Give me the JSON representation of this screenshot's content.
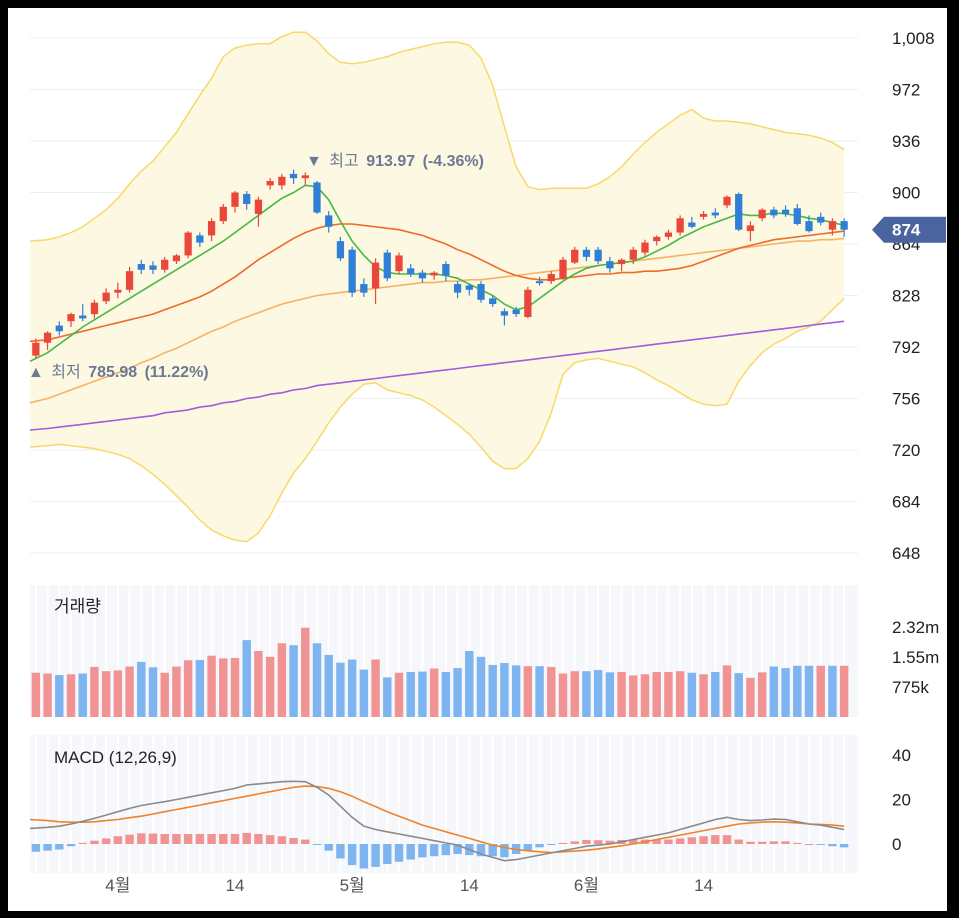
{
  "chart_data": {
    "type": "candlestick",
    "price_axis": {
      "ticks": [
        "1,008",
        "972",
        "936",
        "900",
        "864",
        "828",
        "792",
        "756",
        "720",
        "684",
        "648"
      ],
      "tick_values": [
        1008,
        972,
        936,
        900,
        864,
        828,
        792,
        756,
        720,
        684,
        648
      ],
      "range": [
        648,
        1020
      ]
    },
    "current_price": {
      "label": "874",
      "value": 874
    },
    "high_annotation": {
      "arrow": "▼",
      "prefix": "최고",
      "value": "913.97",
      "change": "(-4.36%)"
    },
    "low_annotation": {
      "arrow": "▲",
      "prefix": "최저",
      "value": "785.98",
      "change": "(11.22%)"
    },
    "candles": [
      {
        "o": 786,
        "h": 798,
        "l": 784,
        "c": 795,
        "d": "up"
      },
      {
        "o": 795,
        "h": 803,
        "l": 790,
        "c": 802,
        "d": "up"
      },
      {
        "o": 807,
        "h": 810,
        "l": 800,
        "c": 803,
        "d": "down"
      },
      {
        "o": 810,
        "h": 816,
        "l": 806,
        "c": 815,
        "d": "up"
      },
      {
        "o": 814,
        "h": 822,
        "l": 810,
        "c": 812,
        "d": "down"
      },
      {
        "o": 815,
        "h": 825,
        "l": 812,
        "c": 823,
        "d": "up"
      },
      {
        "o": 824,
        "h": 833,
        "l": 822,
        "c": 830,
        "d": "up"
      },
      {
        "o": 830,
        "h": 837,
        "l": 826,
        "c": 832,
        "d": "up"
      },
      {
        "o": 832,
        "h": 848,
        "l": 830,
        "c": 845,
        "d": "up"
      },
      {
        "o": 850,
        "h": 853,
        "l": 843,
        "c": 846,
        "d": "down"
      },
      {
        "o": 849,
        "h": 852,
        "l": 843,
        "c": 846,
        "d": "down"
      },
      {
        "o": 846,
        "h": 855,
        "l": 844,
        "c": 853,
        "d": "up"
      },
      {
        "o": 852,
        "h": 857,
        "l": 850,
        "c": 856,
        "d": "up"
      },
      {
        "o": 856,
        "h": 873,
        "l": 854,
        "c": 872,
        "d": "up"
      },
      {
        "o": 870,
        "h": 872,
        "l": 862,
        "c": 865,
        "d": "down"
      },
      {
        "o": 870,
        "h": 882,
        "l": 866,
        "c": 880,
        "d": "up"
      },
      {
        "o": 880,
        "h": 892,
        "l": 878,
        "c": 890,
        "d": "up"
      },
      {
        "o": 890,
        "h": 901,
        "l": 886,
        "c": 900,
        "d": "up"
      },
      {
        "o": 899,
        "h": 901,
        "l": 888,
        "c": 892,
        "d": "down"
      },
      {
        "o": 885,
        "h": 897,
        "l": 876,
        "c": 895,
        "d": "up"
      },
      {
        "o": 905,
        "h": 910,
        "l": 902,
        "c": 908,
        "d": "up"
      },
      {
        "o": 905,
        "h": 913,
        "l": 902,
        "c": 911,
        "d": "up"
      },
      {
        "o": 913,
        "h": 916,
        "l": 906,
        "c": 910,
        "d": "down"
      },
      {
        "o": 910,
        "h": 914,
        "l": 905,
        "c": 912,
        "d": "up"
      },
      {
        "o": 907,
        "h": 908,
        "l": 885,
        "c": 886,
        "d": "down"
      },
      {
        "o": 884,
        "h": 887,
        "l": 872,
        "c": 876,
        "d": "down"
      },
      {
        "o": 866,
        "h": 869,
        "l": 852,
        "c": 854,
        "d": "down"
      },
      {
        "o": 860,
        "h": 862,
        "l": 827,
        "c": 830,
        "d": "down"
      },
      {
        "o": 836,
        "h": 840,
        "l": 827,
        "c": 830,
        "d": "down"
      },
      {
        "o": 833,
        "h": 854,
        "l": 822,
        "c": 851,
        "d": "up"
      },
      {
        "o": 858,
        "h": 860,
        "l": 838,
        "c": 840,
        "d": "down"
      },
      {
        "o": 845,
        "h": 858,
        "l": 843,
        "c": 856,
        "d": "up"
      },
      {
        "o": 847,
        "h": 850,
        "l": 841,
        "c": 843,
        "d": "down"
      },
      {
        "o": 844,
        "h": 846,
        "l": 837,
        "c": 840,
        "d": "down"
      },
      {
        "o": 842,
        "h": 845,
        "l": 839,
        "c": 844,
        "d": "up"
      },
      {
        "o": 850,
        "h": 852,
        "l": 838,
        "c": 842,
        "d": "down"
      },
      {
        "o": 836,
        "h": 838,
        "l": 826,
        "c": 830,
        "d": "down"
      },
      {
        "o": 835,
        "h": 836,
        "l": 828,
        "c": 832,
        "d": "down"
      },
      {
        "o": 836,
        "h": 838,
        "l": 823,
        "c": 825,
        "d": "down"
      },
      {
        "o": 826,
        "h": 828,
        "l": 820,
        "c": 822,
        "d": "down"
      },
      {
        "o": 817,
        "h": 819,
        "l": 807,
        "c": 814,
        "d": "down"
      },
      {
        "o": 818,
        "h": 820,
        "l": 813,
        "c": 815,
        "d": "down"
      },
      {
        "o": 813,
        "h": 834,
        "l": 812,
        "c": 832,
        "d": "up"
      },
      {
        "o": 838,
        "h": 841,
        "l": 835,
        "c": 837,
        "d": "down"
      },
      {
        "o": 838,
        "h": 845,
        "l": 836,
        "c": 843,
        "d": "up"
      },
      {
        "o": 840,
        "h": 855,
        "l": 839,
        "c": 853,
        "d": "up"
      },
      {
        "o": 851,
        "h": 862,
        "l": 850,
        "c": 860,
        "d": "up"
      },
      {
        "o": 860,
        "h": 862,
        "l": 852,
        "c": 855,
        "d": "down"
      },
      {
        "o": 860,
        "h": 862,
        "l": 850,
        "c": 852,
        "d": "down"
      },
      {
        "o": 852,
        "h": 855,
        "l": 844,
        "c": 847,
        "d": "down"
      },
      {
        "o": 850,
        "h": 854,
        "l": 845,
        "c": 853,
        "d": "up"
      },
      {
        "o": 853,
        "h": 862,
        "l": 850,
        "c": 860,
        "d": "up"
      },
      {
        "o": 858,
        "h": 867,
        "l": 856,
        "c": 865,
        "d": "up"
      },
      {
        "o": 866,
        "h": 870,
        "l": 863,
        "c": 869,
        "d": "up"
      },
      {
        "o": 869,
        "h": 874,
        "l": 867,
        "c": 872,
        "d": "up"
      },
      {
        "o": 872,
        "h": 884,
        "l": 870,
        "c": 882,
        "d": "up"
      },
      {
        "o": 879,
        "h": 883,
        "l": 875,
        "c": 876,
        "d": "down"
      },
      {
        "o": 883,
        "h": 887,
        "l": 881,
        "c": 885,
        "d": "up"
      },
      {
        "o": 886,
        "h": 889,
        "l": 882,
        "c": 884,
        "d": "down"
      },
      {
        "o": 891,
        "h": 898,
        "l": 889,
        "c": 897,
        "d": "up"
      },
      {
        "o": 899,
        "h": 900,
        "l": 873,
        "c": 874,
        "d": "down"
      },
      {
        "o": 873,
        "h": 880,
        "l": 866,
        "c": 877,
        "d": "up"
      },
      {
        "o": 882,
        "h": 889,
        "l": 880,
        "c": 888,
        "d": "up"
      },
      {
        "o": 888,
        "h": 890,
        "l": 882,
        "c": 884,
        "d": "down"
      },
      {
        "o": 885,
        "h": 891,
        "l": 883,
        "c": 888,
        "d": "down"
      },
      {
        "o": 889,
        "h": 892,
        "l": 877,
        "c": 878,
        "d": "down"
      },
      {
        "o": 880,
        "h": 884,
        "l": 872,
        "c": 873,
        "d": "down"
      },
      {
        "o": 883,
        "h": 886,
        "l": 877,
        "c": 879,
        "d": "down"
      },
      {
        "o": 874,
        "h": 882,
        "l": 870,
        "c": 880,
        "d": "up"
      },
      {
        "o": 880,
        "h": 882,
        "l": 869,
        "c": 874,
        "d": "down"
      }
    ],
    "ma5": [
      782,
      788,
      794,
      800,
      806,
      811,
      816,
      821,
      826,
      831,
      836,
      841,
      846,
      851,
      856,
      861,
      866,
      872,
      878,
      884,
      890,
      896,
      900,
      905,
      904,
      895,
      880,
      866,
      856,
      848,
      844,
      843,
      843,
      843,
      843,
      842,
      840,
      836,
      832,
      828,
      822,
      818,
      820,
      826,
      832,
      838,
      843,
      847,
      849,
      850,
      851,
      852,
      855,
      859,
      863,
      868,
      872,
      876,
      879,
      882,
      885,
      884,
      884,
      886,
      885,
      884,
      882,
      881,
      879,
      877
    ],
    "ma20": [
      796,
      797,
      799,
      801,
      803,
      805,
      807,
      809,
      811,
      813,
      815,
      818,
      821,
      824,
      827,
      831,
      836,
      841,
      847,
      853,
      858,
      863,
      868,
      872,
      875,
      877,
      878,
      878,
      877,
      876,
      875,
      874,
      872,
      870,
      867,
      864,
      860,
      857,
      853,
      849,
      845,
      842,
      840,
      839,
      839,
      840,
      841,
      842,
      843,
      843,
      844,
      844,
      845,
      845,
      846,
      847,
      849,
      852,
      855,
      858,
      861,
      863,
      865,
      867,
      868,
      869,
      870,
      871,
      872,
      873
    ],
    "ma60": [
      753,
      756,
      759,
      762,
      765,
      768,
      771,
      774,
      777,
      781,
      784,
      788,
      791,
      795,
      799,
      803,
      806,
      810,
      813,
      816,
      819,
      822,
      824,
      826,
      828,
      829,
      830,
      831,
      832,
      833,
      834,
      835,
      836,
      837,
      837,
      838,
      838,
      839,
      839,
      840,
      841,
      842,
      843,
      844,
      845,
      846,
      847,
      848,
      849,
      850,
      851,
      852,
      853,
      854,
      855,
      856,
      857,
      858,
      859,
      860,
      861,
      862,
      863,
      864,
      865,
      866,
      866,
      867,
      867,
      868
    ],
    "ma120": [
      734,
      735,
      736,
      737,
      738,
      739,
      740,
      741,
      742,
      743,
      744,
      746,
      747,
      748,
      750,
      751,
      753,
      754,
      756,
      757,
      759,
      760,
      762,
      763,
      765,
      766,
      767,
      768,
      769,
      770,
      771,
      772,
      773,
      774,
      775,
      776,
      777,
      778,
      779,
      780,
      781,
      782,
      783,
      784,
      785,
      786,
      787,
      788,
      789,
      790,
      791,
      792,
      793,
      794,
      795,
      796,
      797,
      798,
      799,
      800,
      801,
      802,
      803,
      804,
      805,
      806,
      807,
      808,
      809,
      810
    ],
    "bb_upper": [
      866,
      867,
      869,
      872,
      876,
      882,
      888,
      896,
      906,
      915,
      922,
      932,
      942,
      955,
      968,
      980,
      995,
      1001,
      1003,
      1004,
      1004,
      1009,
      1012,
      1012,
      1006,
      997,
      991,
      990,
      991,
      993,
      995,
      998,
      1000,
      1002,
      1004,
      1005,
      1005,
      1003,
      994,
      975,
      946,
      918,
      904,
      902,
      903,
      903,
      903,
      903,
      906,
      911,
      918,
      927,
      935,
      942,
      948,
      954,
      958,
      952,
      950,
      950,
      949,
      948,
      946,
      944,
      942,
      941,
      940,
      938,
      935,
      930
    ],
    "bb_lower": [
      722,
      723,
      724,
      723,
      722,
      721,
      719,
      717,
      714,
      709,
      703,
      696,
      688,
      680,
      671,
      664,
      660,
      657,
      656,
      662,
      674,
      690,
      704,
      714,
      726,
      739,
      750,
      759,
      766,
      767,
      762,
      760,
      758,
      755,
      750,
      744,
      738,
      731,
      722,
      712,
      707,
      707,
      714,
      726,
      746,
      773,
      781,
      783,
      784,
      782,
      780,
      778,
      774,
      769,
      765,
      760,
      755,
      752,
      751,
      752,
      768,
      779,
      788,
      794,
      798,
      803,
      806,
      810,
      818,
      826
    ],
    "volume": {
      "ticks": [
        "2.32m",
        "1.55m",
        "775k"
      ],
      "tick_values": [
        2320000,
        1550000,
        775000
      ],
      "range": [
        0,
        3400000
      ],
      "values": [
        1140000,
        1120000,
        1080000,
        1100000,
        1120000,
        1290000,
        1180000,
        1200000,
        1300000,
        1420000,
        1280000,
        1140000,
        1300000,
        1460000,
        1470000,
        1580000,
        1510000,
        1520000,
        1980000,
        1700000,
        1550000,
        1900000,
        1850000,
        2300000,
        1900000,
        1600000,
        1400000,
        1480000,
        1220000,
        1480000,
        1020000,
        1140000,
        1160000,
        1170000,
        1250000,
        1160000,
        1260000,
        1700000,
        1550000,
        1340000,
        1390000,
        1330000,
        1310000,
        1310000,
        1290000,
        1120000,
        1180000,
        1180000,
        1210000,
        1150000,
        1160000,
        1070000,
        1100000,
        1160000,
        1160000,
        1180000,
        1140000,
        1100000,
        1160000,
        1330000,
        1130000,
        1010000,
        1150000,
        1300000,
        1260000,
        1320000,
        1320000,
        1320000,
        1320000,
        1320000
      ],
      "up": [
        true,
        true,
        false,
        true,
        false,
        true,
        true,
        true,
        true,
        false,
        false,
        true,
        true,
        true,
        false,
        true,
        true,
        true,
        false,
        true,
        true,
        true,
        false,
        true,
        false,
        false,
        false,
        false,
        false,
        true,
        false,
        true,
        false,
        false,
        true,
        false,
        false,
        false,
        false,
        false,
        false,
        false,
        true,
        false,
        true,
        true,
        true,
        false,
        false,
        false,
        true,
        true,
        true,
        true,
        true,
        true,
        false,
        true,
        false,
        true,
        false,
        true,
        true,
        false,
        false,
        false,
        false,
        true,
        false,
        true
      ]
    },
    "macd": {
      "ticks": [
        "40",
        "20",
        "0"
      ],
      "tick_values": [
        40,
        20,
        0
      ],
      "range": [
        -12,
        48
      ],
      "macd_line": [
        7.0,
        7.5,
        8.0,
        9.0,
        10.2,
        11.5,
        13.0,
        14.5,
        16.0,
        17.3,
        18.2,
        19.0,
        20.0,
        21.0,
        22.0,
        23.0,
        24.0,
        25.0,
        26.5,
        27.0,
        27.5,
        28.0,
        28.2,
        28.0,
        25.5,
        22.0,
        17.0,
        12.0,
        8.0,
        6.5,
        5.5,
        4.5,
        3.5,
        2.5,
        1.5,
        0.5,
        -0.5,
        -2.5,
        -4.5,
        -6.0,
        -7.5,
        -7.0,
        -6.0,
        -5.0,
        -4.0,
        -3.0,
        -2.0,
        -1.0,
        -0.5,
        0.0,
        1.0,
        2.0,
        3.0,
        4.0,
        5.0,
        6.5,
        8.0,
        9.5,
        11.0,
        12.0,
        11.0,
        10.5,
        10.8,
        11.2,
        11.0,
        10.0,
        9.0,
        8.5,
        7.5,
        6.5
      ],
      "signal_line": [
        11.0,
        10.5,
        10.0,
        9.8,
        9.8,
        10.0,
        10.5,
        11.0,
        11.8,
        12.5,
        13.5,
        14.5,
        15.5,
        16.5,
        17.5,
        18.5,
        19.5,
        20.5,
        21.5,
        22.5,
        23.5,
        24.5,
        25.5,
        26.0,
        25.8,
        25.0,
        23.5,
        21.5,
        19.0,
        16.8,
        14.5,
        12.5,
        10.5,
        8.5,
        7.0,
        5.5,
        4.0,
        2.5,
        1.0,
        -0.5,
        -1.5,
        -2.5,
        -3.0,
        -3.5,
        -3.8,
        -3.5,
        -3.2,
        -2.8,
        -2.2,
        -1.5,
        -0.8,
        0.0,
        1.0,
        2.0,
        3.0,
        4.0,
        5.0,
        6.0,
        7.0,
        8.0,
        9.0,
        9.5,
        9.8,
        10.0,
        9.8,
        9.5,
        9.0,
        8.8,
        8.5,
        8.0
      ],
      "histogram": [
        -3.5,
        -3.0,
        -2.5,
        -1.0,
        0.5,
        1.5,
        2.5,
        3.5,
        4.2,
        4.8,
        4.7,
        4.5,
        4.5,
        4.5,
        4.5,
        4.5,
        4.5,
        4.5,
        5.0,
        4.5,
        4.0,
        3.5,
        2.7,
        2.0,
        -0.3,
        -3.0,
        -6.5,
        -9.5,
        -11.0,
        -10.3,
        -9.0,
        -8.0,
        -7.0,
        -6.0,
        -5.5,
        -5.0,
        -4.5,
        -5.0,
        -5.5,
        -5.5,
        -6.0,
        -4.5,
        -3.0,
        -1.5,
        -0.2,
        0.5,
        1.2,
        1.8,
        1.7,
        1.5,
        1.8,
        2.0,
        2.0,
        2.0,
        2.0,
        2.5,
        3.0,
        3.5,
        4.0,
        4.0,
        2.0,
        1.0,
        1.0,
        1.2,
        1.2,
        0.5,
        0.0,
        -0.3,
        -1.0,
        -1.5
      ]
    },
    "x_axis": {
      "labels": [
        {
          "text": "4월",
          "index": 7
        },
        {
          "text": "14",
          "index": 17
        },
        {
          "text": "5월",
          "index": 27
        },
        {
          "text": "14",
          "index": 37
        },
        {
          "text": "6월",
          "index": 47
        },
        {
          "text": "14",
          "index": 57
        }
      ]
    },
    "volume_title": "거래량",
    "macd_title": "MACD (12,26,9)",
    "colors": {
      "up": "#e8473a",
      "down": "#2f7fd6",
      "ma5": "#44b944",
      "ma20": "#f06a2a",
      "ma60": "#f5b26a",
      "ma120": "#a35be0",
      "bb_line": "#f7d96a",
      "bb_fill": "#fdf8e1",
      "vol_up": "#f29393",
      "vol_down": "#7eb5f1",
      "macd_line": "#8a8a8a",
      "signal_line": "#f0822a",
      "badge": "#4a64a0"
    }
  }
}
